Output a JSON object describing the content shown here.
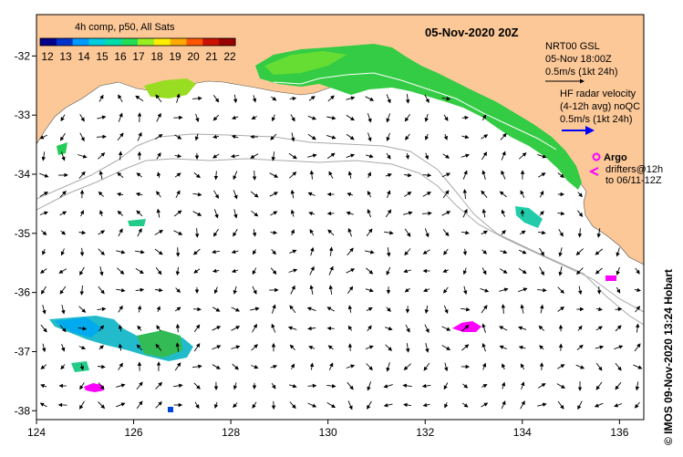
{
  "map": {
    "date_title": "05-Nov-2020 20Z",
    "colorbar": {
      "title": "4h comp, p50, All Sats",
      "tick_labels": [
        "12",
        "13",
        "14",
        "15",
        "16",
        "17",
        "18",
        "19",
        "20",
        "21",
        "22"
      ],
      "colors": [
        "#00008b",
        "#0033cc",
        "#0099ff",
        "#00ccdd",
        "#00ddaa",
        "#22dd55",
        "#99ee22",
        "#ffee00",
        "#ffaa00",
        "#ff5500",
        "#cc1100",
        "#990000"
      ]
    },
    "x_ticks": [
      "124",
      "126",
      "128",
      "130",
      "132",
      "134",
      "136"
    ],
    "y_ticks": [
      "-32",
      "-33",
      "-34",
      "-35",
      "-36",
      "-37",
      "-38"
    ],
    "x_values": [
      124,
      126,
      128,
      130,
      132,
      134,
      136
    ],
    "y_values": [
      -32,
      -33,
      -34,
      -35,
      -36,
      -37,
      -38
    ],
    "extent": {
      "lon": [
        124,
        136.5
      ],
      "lat": [
        -38.15,
        -31.3
      ]
    },
    "legend": {
      "nrt_line1": "NRT00 GSL",
      "nrt_line2": "05-Nov 18:00Z",
      "nrt_line3": "0.5m/s (1kt 24h)",
      "hf_line1": "HF radar velocity",
      "hf_line2": "(4-12h avg) noQC",
      "hf_line3": "0.5m/s (1kt 24h)",
      "argo_label": "Argo",
      "drifters_line1": "drifters@12h",
      "drifters_line2": "to 06/11-12Z"
    },
    "credit": "© IMOS 09-Nov-2020 13:24 Hobart",
    "land_color": "#fcc898",
    "argo_color": "#ff00ff",
    "hf_arrow_color": "#0000ff"
  }
}
